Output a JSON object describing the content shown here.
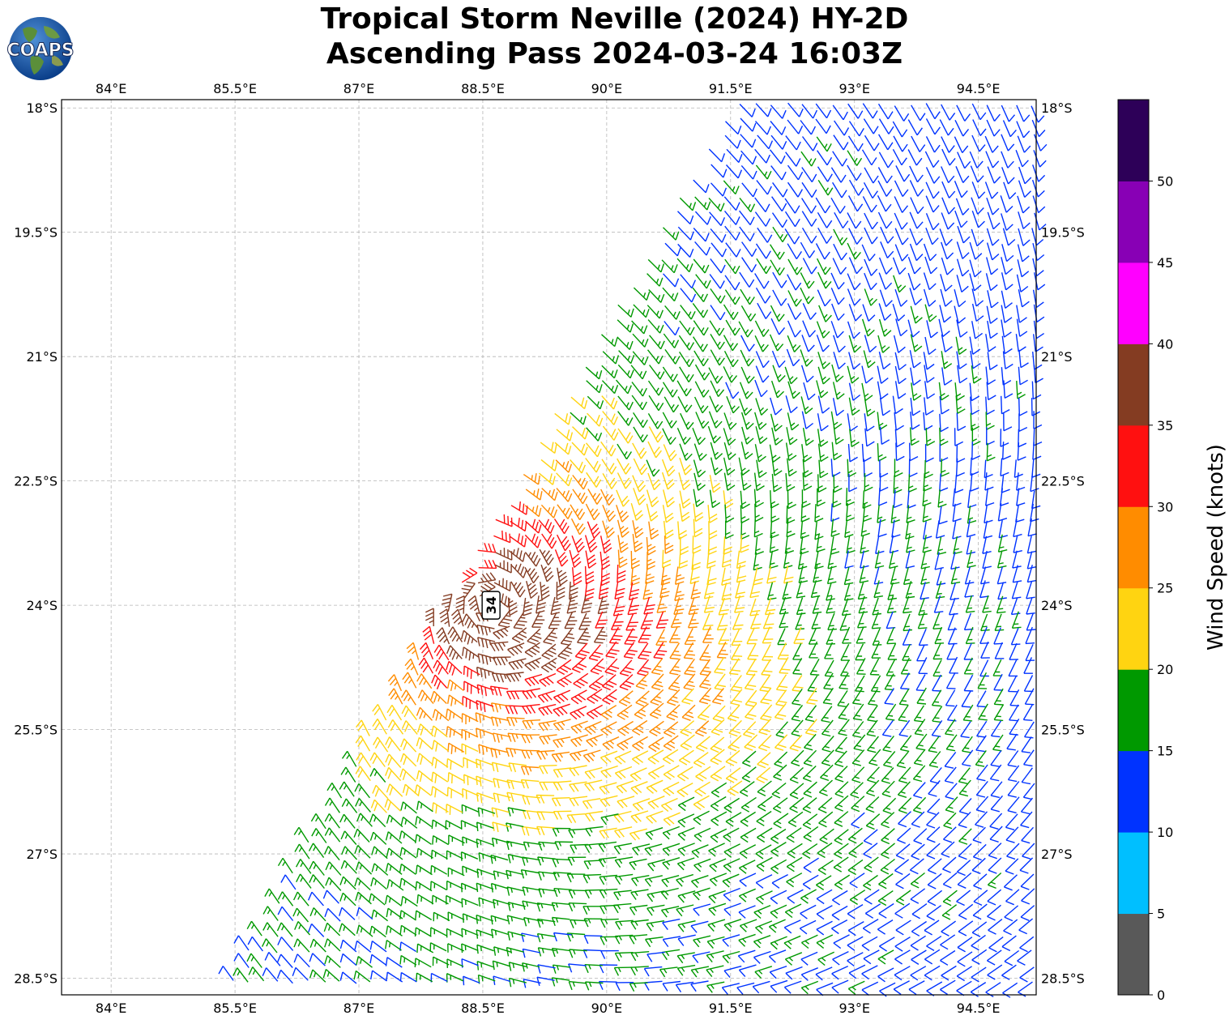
{
  "title": {
    "line1": "Tropical Storm Neville (2024) HY-2D",
    "line2": "Ascending Pass 2024-03-24 16:03Z"
  },
  "logo": {
    "text": "COAPS",
    "icon": "globe-logo-icon"
  },
  "map": {
    "lon_range": [
      83.4,
      95.2
    ],
    "lat_range": [
      -28.7,
      -17.9
    ],
    "lon_ticks": [
      "84°E",
      "85.5°E",
      "87°E",
      "88.5°E",
      "90°E",
      "91.5°E",
      "93°E",
      "94.5°E"
    ],
    "lon_values": [
      84,
      85.5,
      87,
      88.5,
      90,
      91.5,
      93,
      94.5
    ],
    "lat_ticks": [
      "18°S",
      "19.5°S",
      "21°S",
      "22.5°S",
      "24°S",
      "25.5°S",
      "27°S",
      "28.5°S"
    ],
    "lat_values": [
      -18,
      -19.5,
      -21,
      -22.5,
      -24,
      -25.5,
      -27,
      -28.5
    ],
    "grid": true
  },
  "storm": {
    "intensity_label": "34",
    "lon": 88.6,
    "lat": -24.0
  },
  "colorbar": {
    "label": "Wind Speed (knots)",
    "bounds": [
      0,
      5,
      10,
      15,
      20,
      25,
      30,
      35,
      40,
      45,
      50,
      55
    ],
    "tick_labels": [
      "0",
      "5",
      "10",
      "15",
      "20",
      "25",
      "30",
      "35",
      "40",
      "45",
      "50"
    ],
    "colors": [
      "#595959",
      "#00bfff",
      "#0033ff",
      "#009900",
      "#ffd411",
      "#ff8c00",
      "#ff1010",
      "#843c22",
      "#ff00ff",
      "#8800b5",
      "#2d0058"
    ]
  }
}
